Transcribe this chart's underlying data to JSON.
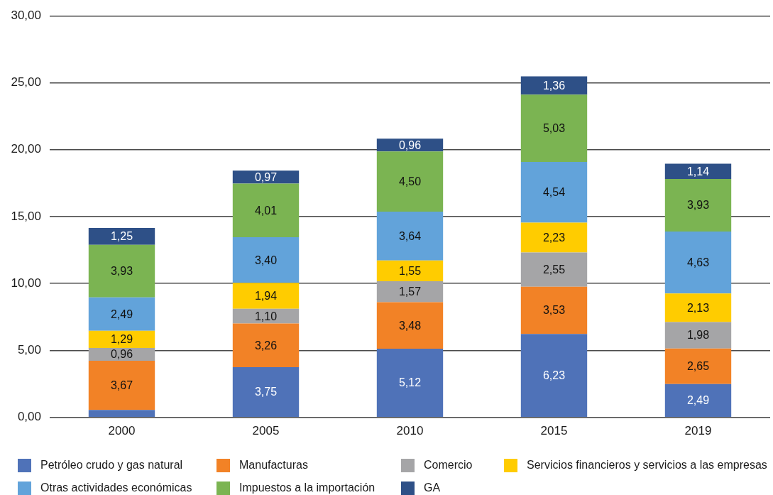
{
  "chart_data": {
    "type": "bar",
    "stacked": true,
    "categories": [
      "2000",
      "2005",
      "2010",
      "2015",
      "2019"
    ],
    "series": [
      {
        "name": "Petróleo crudo y gas natural",
        "color": "#4f72b8",
        "values": [
          0.55,
          3.75,
          5.12,
          6.23,
          2.49
        ],
        "value_labels": [
          null,
          "3,75",
          "5,12",
          "6,23",
          "2,49"
        ]
      },
      {
        "name": "Manufacturas",
        "color": "#f28226",
        "values": [
          3.67,
          3.26,
          3.48,
          3.53,
          2.65
        ],
        "value_labels": [
          "3,67",
          "3,26",
          "3,48",
          "3,53",
          "2,65"
        ]
      },
      {
        "name": "Comercio",
        "color": "#a5a5a7",
        "values": [
          0.96,
          1.1,
          1.57,
          2.55,
          1.98
        ],
        "value_labels": [
          "0,96",
          "1,10",
          "1,57",
          "2,55",
          "1,98"
        ]
      },
      {
        "name": "Servicios financieros y servicios a las empresas",
        "color": "#ffcc00",
        "values": [
          1.29,
          1.94,
          1.55,
          2.23,
          2.13
        ],
        "value_labels": [
          "1,29",
          "1,94",
          "1,55",
          "2,23",
          "2,13"
        ]
      },
      {
        "name": "Otras actividades económicas",
        "color": "#62a3da",
        "values": [
          2.49,
          3.4,
          3.64,
          4.54,
          4.63
        ],
        "value_labels": [
          "2,49",
          "3,40",
          "3,64",
          "4,54",
          "4,63"
        ]
      },
      {
        "name": "Impuestos a la importación",
        "color": "#7bb452",
        "values": [
          3.93,
          4.01,
          4.5,
          5.03,
          3.93
        ],
        "value_labels": [
          "3,93",
          "4,01",
          "4,50",
          "5,03",
          "3,93"
        ]
      },
      {
        "name": "GA",
        "color": "#2e5087",
        "values": [
          1.25,
          0.97,
          0.96,
          1.36,
          1.14
        ],
        "value_labels": [
          "1,25",
          "0,97",
          "0,96",
          "1,36",
          "1,14"
        ]
      }
    ],
    "ylim": [
      0,
      30
    ],
    "yticks": [
      {
        "value": 0,
        "label": "0,00"
      },
      {
        "value": 5,
        "label": "5,00"
      },
      {
        "value": 10,
        "label": "10,00"
      },
      {
        "value": 15,
        "label": "15,00"
      },
      {
        "value": 20,
        "label": "20,00"
      },
      {
        "value": 25,
        "label": "25,00"
      },
      {
        "value": 30,
        "label": "30,00"
      }
    ],
    "grid": "y",
    "legend": "bottom"
  }
}
